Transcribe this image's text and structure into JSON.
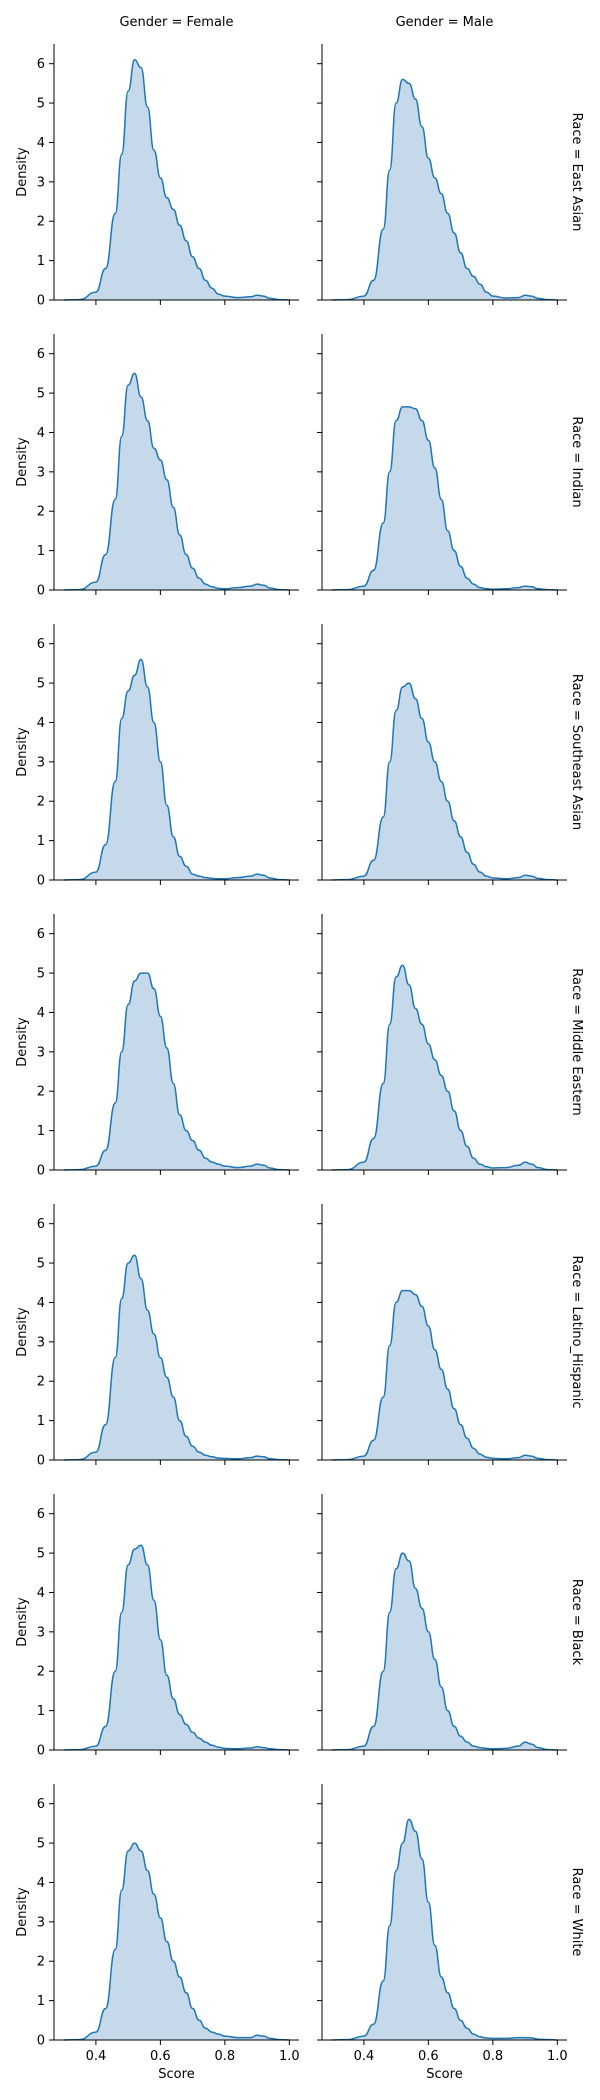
{
  "chart_data": {
    "type": "area",
    "subtype": "kde-density-facet-grid",
    "col_titles": [
      "Gender = Female",
      "Gender = Male"
    ],
    "row_titles": [
      "Race = East Asian",
      "Race = Indian",
      "Race = Southeast Asian",
      "Race = Middle Eastern",
      "Race = Latino_Hispanic",
      "Race = Black",
      "Race = White"
    ],
    "xlabel": "Score",
    "ylabel": "Density",
    "xlim": [
      0.27,
      1.03
    ],
    "ylim": [
      0,
      6.5
    ],
    "xticks": [
      "0.4",
      "0.6",
      "0.8",
      "1.0"
    ],
    "yticks": [
      "0",
      "1",
      "2",
      "3",
      "4",
      "5",
      "6"
    ],
    "x": [
      0.3,
      0.35,
      0.4,
      0.43,
      0.46,
      0.48,
      0.5,
      0.52,
      0.54,
      0.56,
      0.58,
      0.6,
      0.62,
      0.64,
      0.66,
      0.68,
      0.7,
      0.72,
      0.74,
      0.76,
      0.78,
      0.8,
      0.84,
      0.88,
      0.9,
      0.92,
      0.94,
      0.97,
      1.0
    ],
    "panels": [
      [
        {
          "values": [
            0,
            0.01,
            0.2,
            0.8,
            2.2,
            3.7,
            5.3,
            6.1,
            5.9,
            4.9,
            3.8,
            3.1,
            2.6,
            2.3,
            1.9,
            1.5,
            1.1,
            0.8,
            0.5,
            0.3,
            0.15,
            0.1,
            0.06,
            0.08,
            0.12,
            0.1,
            0.04,
            0.01,
            0
          ]
        },
        {
          "values": [
            0,
            0.01,
            0.1,
            0.5,
            1.8,
            3.3,
            5.0,
            5.6,
            5.5,
            5.1,
            4.4,
            3.6,
            3.1,
            2.7,
            2.2,
            1.7,
            1.2,
            0.8,
            0.6,
            0.4,
            0.2,
            0.1,
            0.05,
            0.06,
            0.12,
            0.1,
            0.04,
            0.01,
            0
          ]
        }
      ],
      [
        {
          "values": [
            0,
            0.01,
            0.2,
            0.9,
            2.3,
            3.9,
            5.2,
            5.5,
            4.9,
            4.3,
            3.6,
            3.3,
            2.8,
            2.1,
            1.4,
            0.9,
            0.55,
            0.3,
            0.15,
            0.08,
            0.04,
            0.03,
            0.06,
            0.1,
            0.15,
            0.12,
            0.05,
            0.01,
            0
          ]
        },
        {
          "values": [
            0,
            0.01,
            0.1,
            0.5,
            1.7,
            3.0,
            4.3,
            4.65,
            4.65,
            4.6,
            4.3,
            3.8,
            3.1,
            2.3,
            1.5,
            1.0,
            0.6,
            0.3,
            0.15,
            0.06,
            0.03,
            0.02,
            0.03,
            0.06,
            0.1,
            0.08,
            0.03,
            0.01,
            0
          ]
        }
      ],
      [
        {
          "values": [
            0,
            0.01,
            0.2,
            0.9,
            2.5,
            4.1,
            4.8,
            5.2,
            5.6,
            4.9,
            4.0,
            3.0,
            1.9,
            1.1,
            0.6,
            0.35,
            0.15,
            0.1,
            0.06,
            0.04,
            0.03,
            0.03,
            0.06,
            0.1,
            0.15,
            0.12,
            0.05,
            0.01,
            0
          ]
        },
        {
          "values": [
            0,
            0.01,
            0.1,
            0.5,
            1.6,
            3.0,
            4.3,
            4.9,
            5.0,
            4.6,
            4.1,
            3.5,
            3.0,
            2.5,
            2.0,
            1.5,
            1.1,
            0.7,
            0.4,
            0.2,
            0.1,
            0.05,
            0.03,
            0.06,
            0.12,
            0.1,
            0.04,
            0.01,
            0
          ]
        }
      ],
      [
        {
          "values": [
            0,
            0.01,
            0.1,
            0.5,
            1.7,
            3.0,
            4.2,
            4.8,
            5.0,
            5.0,
            4.6,
            3.9,
            3.1,
            2.2,
            1.4,
            1.0,
            0.75,
            0.5,
            0.3,
            0.2,
            0.15,
            0.1,
            0.06,
            0.1,
            0.15,
            0.12,
            0.05,
            0.01,
            0
          ]
        },
        {
          "values": [
            0,
            0.01,
            0.2,
            0.8,
            2.2,
            3.7,
            4.9,
            5.2,
            4.7,
            4.1,
            3.7,
            3.2,
            2.8,
            2.4,
            2.0,
            1.5,
            1.0,
            0.6,
            0.3,
            0.15,
            0.08,
            0.05,
            0.06,
            0.12,
            0.2,
            0.15,
            0.06,
            0.01,
            0
          ]
        }
      ],
      [
        {
          "values": [
            0,
            0.01,
            0.2,
            0.9,
            2.6,
            4.1,
            5.0,
            5.2,
            4.6,
            3.8,
            3.2,
            2.6,
            2.1,
            1.6,
            1.0,
            0.6,
            0.35,
            0.2,
            0.12,
            0.08,
            0.05,
            0.04,
            0.03,
            0.06,
            0.1,
            0.08,
            0.03,
            0.01,
            0
          ]
        },
        {
          "values": [
            0,
            0.01,
            0.1,
            0.5,
            1.6,
            2.9,
            4.0,
            4.3,
            4.3,
            4.2,
            3.9,
            3.4,
            2.8,
            2.3,
            1.8,
            1.3,
            0.9,
            0.55,
            0.3,
            0.15,
            0.07,
            0.04,
            0.03,
            0.06,
            0.12,
            0.1,
            0.04,
            0.01,
            0
          ]
        }
      ],
      [
        {
          "values": [
            0,
            0.01,
            0.1,
            0.6,
            2.0,
            3.5,
            4.7,
            5.1,
            5.2,
            4.7,
            3.8,
            2.8,
            1.9,
            1.3,
            0.9,
            0.65,
            0.45,
            0.3,
            0.2,
            0.12,
            0.07,
            0.04,
            0.03,
            0.05,
            0.08,
            0.06,
            0.03,
            0.01,
            0
          ]
        },
        {
          "values": [
            0,
            0.01,
            0.1,
            0.6,
            2.0,
            3.5,
            4.6,
            5.0,
            4.8,
            4.1,
            3.6,
            3.0,
            2.3,
            1.6,
            1.0,
            0.6,
            0.35,
            0.2,
            0.1,
            0.06,
            0.04,
            0.03,
            0.04,
            0.1,
            0.2,
            0.15,
            0.06,
            0.01,
            0
          ]
        }
      ],
      [
        {
          "values": [
            0,
            0.01,
            0.2,
            0.8,
            2.3,
            3.8,
            4.8,
            5.0,
            4.8,
            4.3,
            3.7,
            3.1,
            2.5,
            2.0,
            1.6,
            1.2,
            0.8,
            0.5,
            0.3,
            0.2,
            0.15,
            0.1,
            0.06,
            0.06,
            0.12,
            0.1,
            0.04,
            0.01,
            0
          ]
        },
        {
          "values": [
            0,
            0.01,
            0.1,
            0.4,
            1.5,
            2.9,
            4.3,
            5.0,
            5.6,
            5.3,
            4.6,
            3.5,
            2.4,
            1.6,
            1.2,
            0.8,
            0.5,
            0.3,
            0.15,
            0.08,
            0.05,
            0.04,
            0.04,
            0.06,
            0.06,
            0.05,
            0.02,
            0.01,
            0
          ]
        }
      ]
    ],
    "colors": {
      "line": "#1f77b4",
      "fill": "#c5d9eb",
      "axis": "#000000"
    },
    "grid": false,
    "legend": "none"
  }
}
